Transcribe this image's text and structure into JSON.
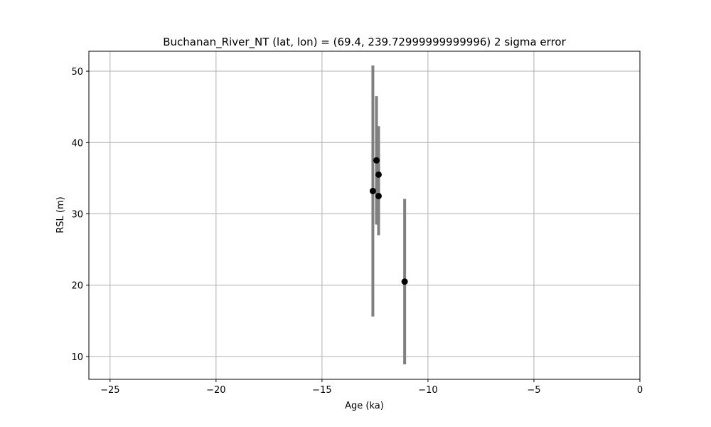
{
  "chart_data": {
    "type": "scatter",
    "title": "Buchanan_River_NT (lat, lon) = (69.4, 239.72999999999996)  2 sigma error",
    "xlabel": "Age (ka)",
    "ylabel": "RSL (m)",
    "xlim": [
      -26,
      0
    ],
    "ylim": [
      6.8,
      52.8
    ],
    "xticks": [
      -25,
      -20,
      -15,
      -10,
      -5,
      0
    ],
    "xtick_labels": [
      "−25",
      "−20",
      "−15",
      "−10",
      "−5",
      "0"
    ],
    "yticks": [
      10,
      20,
      30,
      40,
      50
    ],
    "ytick_labels": [
      "10",
      "20",
      "30",
      "40",
      "50"
    ],
    "grid": true,
    "marker_color": "#000000",
    "errorbar_color": "#808080",
    "points": [
      {
        "x": -12.6,
        "y": 33.2,
        "y_low": 15.6,
        "y_high": 50.8
      },
      {
        "x": -12.43,
        "y": 37.5,
        "y_low": 28.5,
        "y_high": 46.5
      },
      {
        "x": -12.33,
        "y": 35.5,
        "y_low": 28.7,
        "y_high": 42.3
      },
      {
        "x": -12.33,
        "y": 32.5,
        "y_low": 27.0,
        "y_high": 38.0
      },
      {
        "x": -11.1,
        "y": 20.5,
        "y_low": 8.9,
        "y_high": 32.1
      }
    ]
  }
}
